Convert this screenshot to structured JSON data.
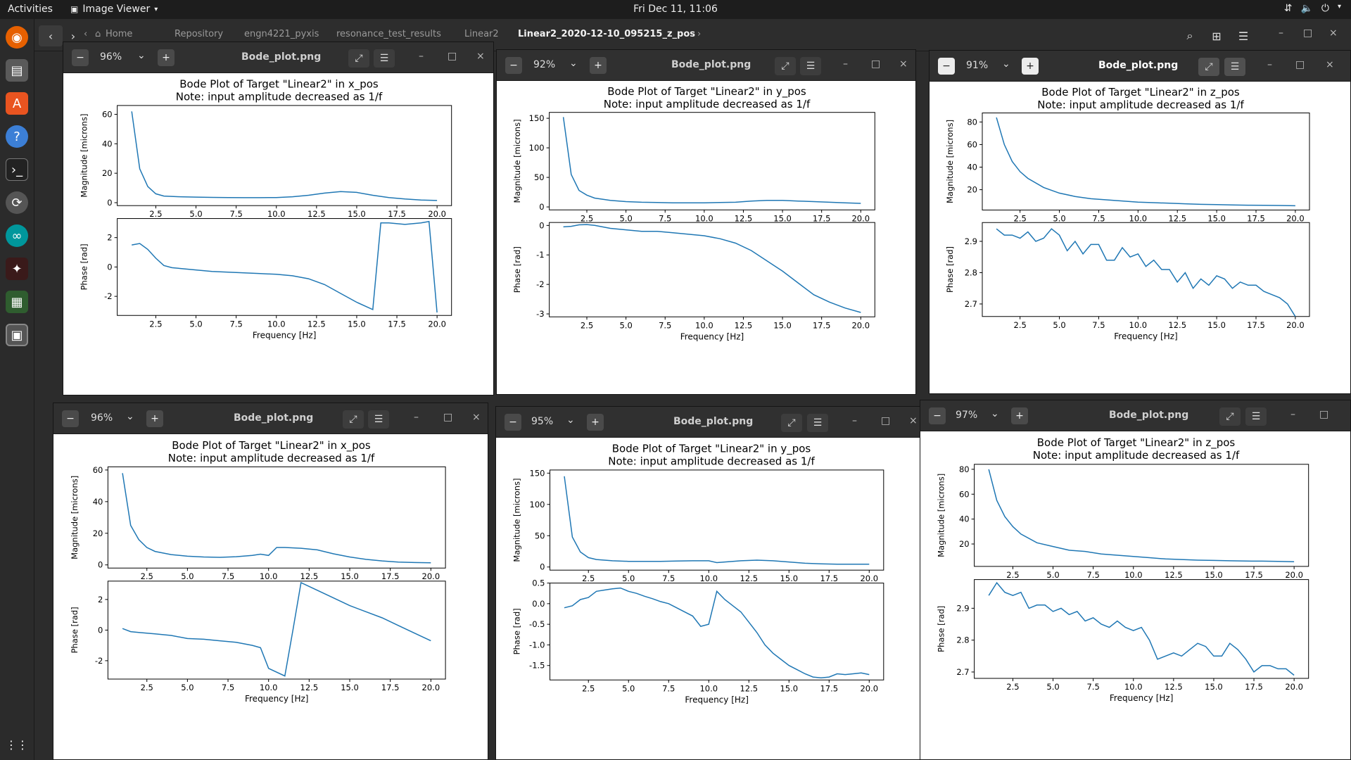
{
  "topbar": {
    "activities": "Activities",
    "app_name": "Image Viewer",
    "clock": "Fri Dec 11, 11:06"
  },
  "pathbar": {
    "crumbs": [
      "Home",
      "Repository",
      "engn4221_pyxis",
      "resonance_test_results",
      "Linear2",
      "Linear2_2020-12-10_095215_z_pos"
    ]
  },
  "windows": [
    {
      "zoom": "96%",
      "title": "Bode_plot.png"
    },
    {
      "zoom": "92%",
      "title": "Bode_plot.png"
    },
    {
      "zoom": "91%",
      "title": "Bode_plot.png"
    },
    {
      "zoom": "96%",
      "title": "Bode_plot.png"
    },
    {
      "zoom": "95%",
      "title": "Bode_plot.png"
    },
    {
      "zoom": "97%",
      "title": "Bode_plot.png"
    }
  ],
  "chart_data": [
    {
      "type": "line",
      "title": "Bode Plot of Target \"Linear2\" in x_pos",
      "subtitle": "Note: input amplitude decreased as 1/f",
      "xlabel": "Frequency [Hz]",
      "x_ticks": [
        2.5,
        5.0,
        7.5,
        10.0,
        12.5,
        15.0,
        17.5,
        20.0
      ],
      "xlim": [
        0.1,
        20.9
      ],
      "magnitude": {
        "ylabel": "Magnitude [microns]",
        "ylim": [
          -2,
          66
        ],
        "y_ticks": [
          0,
          20,
          40,
          60
        ],
        "x": [
          1,
          1.5,
          2,
          2.5,
          3,
          4,
          5,
          6,
          7,
          8,
          9,
          10,
          11,
          12,
          13,
          14,
          15,
          16,
          17,
          18,
          19,
          20
        ],
        "y": [
          62,
          23,
          11,
          6,
          4.5,
          4,
          3.8,
          3.6,
          3.5,
          3.4,
          3.4,
          3.5,
          4,
          5,
          6.5,
          7.5,
          7,
          5,
          3.5,
          2.5,
          1.8,
          1.5
        ]
      },
      "phase": {
        "ylabel": "Phase [rad]",
        "ylim": [
          -3.3,
          3.3
        ],
        "y_ticks": [
          -2,
          0,
          2
        ],
        "x": [
          1,
          1.5,
          2,
          2.5,
          3,
          3.5,
          4,
          5,
          6,
          7,
          8,
          9,
          10,
          11,
          12,
          13,
          14,
          15,
          16,
          16.5,
          17,
          18,
          19,
          19.5,
          20
        ],
        "y": [
          1.5,
          1.6,
          1.2,
          0.6,
          0.1,
          -0.05,
          -0.1,
          -0.2,
          -0.3,
          -0.35,
          -0.4,
          -0.45,
          -0.5,
          -0.6,
          -0.8,
          -1.2,
          -1.8,
          -2.4,
          -2.9,
          3.0,
          3.0,
          2.9,
          3.0,
          3.1,
          -3.1
        ]
      }
    },
    {
      "type": "line",
      "title": "Bode Plot of Target \"Linear2\" in y_pos",
      "subtitle": "Note: input amplitude decreased as 1/f",
      "xlabel": "Frequency [Hz]",
      "x_ticks": [
        2.5,
        5.0,
        7.5,
        10.0,
        12.5,
        15.0,
        17.5,
        20.0
      ],
      "xlim": [
        0.1,
        20.9
      ],
      "magnitude": {
        "ylabel": "Magnitude [microns]",
        "ylim": [
          -5,
          160
        ],
        "y_ticks": [
          0,
          50,
          100,
          150
        ],
        "x": [
          1,
          1.5,
          2,
          2.5,
          3,
          4,
          5,
          6,
          7,
          8,
          9,
          10,
          11,
          12,
          13,
          14,
          15,
          16,
          17,
          18,
          19,
          20
        ],
        "y": [
          152,
          55,
          28,
          20,
          15,
          11,
          9,
          8,
          7.5,
          7,
          7,
          7,
          7.5,
          8,
          10,
          11,
          11,
          10,
          9,
          8,
          7,
          6
        ]
      },
      "phase": {
        "ylabel": "Phase [rad]",
        "ylim": [
          -3.1,
          0.1
        ],
        "y_ticks": [
          0,
          -1,
          -2,
          -3
        ],
        "x": [
          1,
          1.5,
          2,
          2.5,
          3,
          4,
          5,
          6,
          7,
          8,
          9,
          10,
          11,
          12,
          13,
          14,
          15,
          16,
          17,
          18,
          19,
          20
        ],
        "y": [
          -0.05,
          -0.03,
          0.02,
          0.03,
          0.0,
          -0.1,
          -0.15,
          -0.2,
          -0.2,
          -0.25,
          -0.3,
          -0.35,
          -0.45,
          -0.6,
          -0.85,
          -1.2,
          -1.55,
          -1.95,
          -2.35,
          -2.6,
          -2.8,
          -2.95
        ]
      }
    },
    {
      "type": "line",
      "title": "Bode Plot of Target \"Linear2\" in z_pos",
      "subtitle": "Note: input amplitude decreased as 1/f",
      "xlabel": "Frequency [Hz]",
      "x_ticks": [
        2.5,
        5.0,
        7.5,
        10.0,
        12.5,
        15.0,
        17.5,
        20.0
      ],
      "xlim": [
        0.1,
        20.9
      ],
      "magnitude": {
        "ylabel": "Magnitude [microns]",
        "ylim": [
          2,
          88
        ],
        "y_ticks": [
          20,
          40,
          60,
          80
        ],
        "x": [
          1,
          1.5,
          2,
          2.5,
          3,
          4,
          5,
          6,
          7,
          8,
          9,
          10,
          11,
          12,
          13,
          14,
          15,
          16,
          17,
          18,
          19,
          20
        ],
        "y": [
          84,
          60,
          45,
          36,
          30,
          22,
          17,
          14,
          12,
          11,
          10,
          9,
          8.5,
          8,
          7.5,
          7,
          6.8,
          6.5,
          6.3,
          6.2,
          6,
          5.8
        ]
      },
      "phase": {
        "ylabel": "Phase [rad]",
        "ylim": [
          2.66,
          2.96
        ],
        "y_ticks": [
          2.7,
          2.8,
          2.9
        ],
        "x": [
          1,
          1.5,
          2,
          2.5,
          3,
          3.5,
          4,
          4.5,
          5,
          5.5,
          6,
          6.5,
          7,
          7.5,
          8,
          8.5,
          9,
          9.5,
          10,
          10.5,
          11,
          11.5,
          12,
          12.5,
          13,
          13.5,
          14,
          14.5,
          15,
          15.5,
          16,
          16.5,
          17,
          17.5,
          18,
          18.5,
          19,
          19.5,
          20
        ],
        "y": [
          2.94,
          2.92,
          2.92,
          2.91,
          2.93,
          2.9,
          2.91,
          2.94,
          2.92,
          2.87,
          2.9,
          2.86,
          2.89,
          2.89,
          2.84,
          2.84,
          2.88,
          2.85,
          2.86,
          2.82,
          2.84,
          2.81,
          2.81,
          2.77,
          2.8,
          2.75,
          2.78,
          2.76,
          2.79,
          2.78,
          2.75,
          2.77,
          2.76,
          2.76,
          2.74,
          2.73,
          2.72,
          2.7,
          2.66
        ]
      }
    },
    {
      "type": "line",
      "title": "Bode Plot of Target \"Linear2\" in x_pos",
      "subtitle": "Note: input amplitude decreased as 1/f",
      "xlabel": "Frequency [Hz]",
      "x_ticks": [
        2.5,
        5.0,
        7.5,
        10.0,
        12.5,
        15.0,
        17.5,
        20.0
      ],
      "xlim": [
        0.1,
        20.9
      ],
      "magnitude": {
        "ylabel": "Magnitude [microns]",
        "ylim": [
          -2,
          62
        ],
        "y_ticks": [
          0,
          20,
          40,
          60
        ],
        "x": [
          1,
          1.5,
          2,
          2.5,
          3,
          3.5,
          4,
          5,
          6,
          7,
          8,
          9,
          9.5,
          10,
          10.5,
          11,
          12,
          13,
          14,
          15,
          16,
          17,
          18,
          19,
          20
        ],
        "y": [
          58,
          25,
          16,
          11,
          8.5,
          7.5,
          6.5,
          5.5,
          5,
          4.8,
          5.2,
          6,
          6.8,
          6,
          11,
          11,
          10.5,
          9.5,
          7,
          5,
          3.5,
          2.5,
          1.8,
          1.5,
          1.3
        ]
      },
      "phase": {
        "ylabel": "Phase [rad]",
        "ylim": [
          -3.2,
          3.2
        ],
        "y_ticks": [
          -2,
          0,
          2
        ],
        "x": [
          1,
          1.5,
          2,
          2.5,
          3,
          4,
          5,
          6,
          7,
          8,
          9,
          9.5,
          10,
          11,
          11.5,
          12,
          13,
          14,
          15,
          16,
          17,
          18,
          19,
          20
        ],
        "y": [
          0.1,
          -0.1,
          -0.15,
          -0.2,
          -0.25,
          -0.35,
          -0.55,
          -0.6,
          -0.7,
          -0.8,
          -1.0,
          -1.15,
          -2.5,
          -3.0,
          0.0,
          3.1,
          2.6,
          2.1,
          1.6,
          1.2,
          0.8,
          0.3,
          -0.2,
          -0.7
        ]
      }
    },
    {
      "type": "line",
      "title": "Bode Plot of Target \"Linear2\" in y_pos",
      "subtitle": "Note: input amplitude decreased as 1/f",
      "xlabel": "Frequency [Hz]",
      "x_ticks": [
        2.5,
        5.0,
        7.5,
        10.0,
        12.5,
        15.0,
        17.5,
        20.0
      ],
      "xlim": [
        0.1,
        20.9
      ],
      "magnitude": {
        "ylabel": "Magnitude [microns]",
        "ylim": [
          -5,
          155
        ],
        "y_ticks": [
          0,
          50,
          100,
          150
        ],
        "x": [
          1,
          1.5,
          2,
          2.5,
          3,
          4,
          5,
          6,
          7,
          8,
          9,
          10,
          10.5,
          11,
          12,
          13,
          14,
          15,
          16,
          17,
          18,
          19,
          20
        ],
        "y": [
          145,
          48,
          24,
          15,
          12,
          10,
          9,
          9,
          9,
          9.5,
          10,
          10,
          7,
          8,
          10,
          11,
          10,
          8,
          6,
          5,
          4.5,
          4.5,
          4.5
        ]
      },
      "phase": {
        "ylabel": "Phase [rad]",
        "ylim": [
          -1.85,
          0.5
        ],
        "y_ticks": [
          0.5,
          0.0,
          -0.5,
          -1.0,
          -1.5
        ],
        "x": [
          1,
          1.5,
          2,
          2.5,
          3,
          3.5,
          4,
          4.5,
          5,
          5.5,
          6,
          6.5,
          7,
          7.5,
          8,
          8.5,
          9,
          9.5,
          10,
          10.5,
          11,
          11.5,
          12,
          12.5,
          13,
          13.5,
          14,
          14.5,
          15,
          15.5,
          16,
          16.5,
          17,
          17.5,
          18,
          18.5,
          19,
          19.5,
          20
        ],
        "y": [
          -0.1,
          -0.05,
          0.1,
          0.15,
          0.3,
          0.33,
          0.36,
          0.38,
          0.3,
          0.25,
          0.18,
          0.12,
          0.05,
          0.0,
          -0.1,
          -0.2,
          -0.3,
          -0.55,
          -0.5,
          0.3,
          0.1,
          -0.05,
          -0.2,
          -0.45,
          -0.7,
          -1.0,
          -1.2,
          -1.35,
          -1.5,
          -1.6,
          -1.7,
          -1.78,
          -1.8,
          -1.78,
          -1.7,
          -1.72,
          -1.7,
          -1.68,
          -1.72
        ]
      }
    },
    {
      "type": "line",
      "title": "Bode Plot of Target \"Linear2\" in z_pos",
      "subtitle": "Note: input amplitude decreased as 1/f",
      "xlabel": "Frequency [Hz]",
      "x_ticks": [
        2.5,
        5.0,
        7.5,
        10.0,
        12.5,
        15.0,
        17.5,
        20.0
      ],
      "xlim": [
        0.1,
        20.9
      ],
      "magnitude": {
        "ylabel": "Magnitude [microns]",
        "ylim": [
          2,
          84
        ],
        "y_ticks": [
          20,
          40,
          60,
          80
        ],
        "x": [
          1,
          1.5,
          2,
          2.5,
          3,
          4,
          5,
          6,
          7,
          8,
          9,
          10,
          11,
          12,
          13,
          14,
          15,
          16,
          17,
          18,
          19,
          20
        ],
        "y": [
          80,
          55,
          42,
          34,
          28,
          21,
          18,
          15,
          14,
          12,
          11,
          10,
          9,
          8,
          7.5,
          7,
          6.8,
          6.5,
          6.3,
          6.2,
          6,
          5.8
        ]
      },
      "phase": {
        "ylabel": "Phase [rad]",
        "ylim": [
          2.68,
          2.99
        ],
        "y_ticks": [
          2.7,
          2.8,
          2.9
        ],
        "x": [
          1,
          1.5,
          2,
          2.5,
          3,
          3.5,
          4,
          4.5,
          5,
          5.5,
          6,
          6.5,
          7,
          7.5,
          8,
          8.5,
          9,
          9.5,
          10,
          10.5,
          11,
          11.5,
          12,
          12.5,
          13,
          13.5,
          14,
          14.5,
          15,
          15.5,
          16,
          16.5,
          17,
          17.5,
          18,
          18.5,
          19,
          19.5,
          20
        ],
        "y": [
          2.94,
          2.98,
          2.95,
          2.94,
          2.95,
          2.9,
          2.91,
          2.91,
          2.89,
          2.9,
          2.88,
          2.89,
          2.86,
          2.87,
          2.85,
          2.84,
          2.86,
          2.84,
          2.83,
          2.84,
          2.8,
          2.74,
          2.75,
          2.76,
          2.75,
          2.77,
          2.79,
          2.78,
          2.75,
          2.75,
          2.79,
          2.77,
          2.74,
          2.7,
          2.72,
          2.72,
          2.71,
          2.71,
          2.69
        ]
      }
    }
  ]
}
